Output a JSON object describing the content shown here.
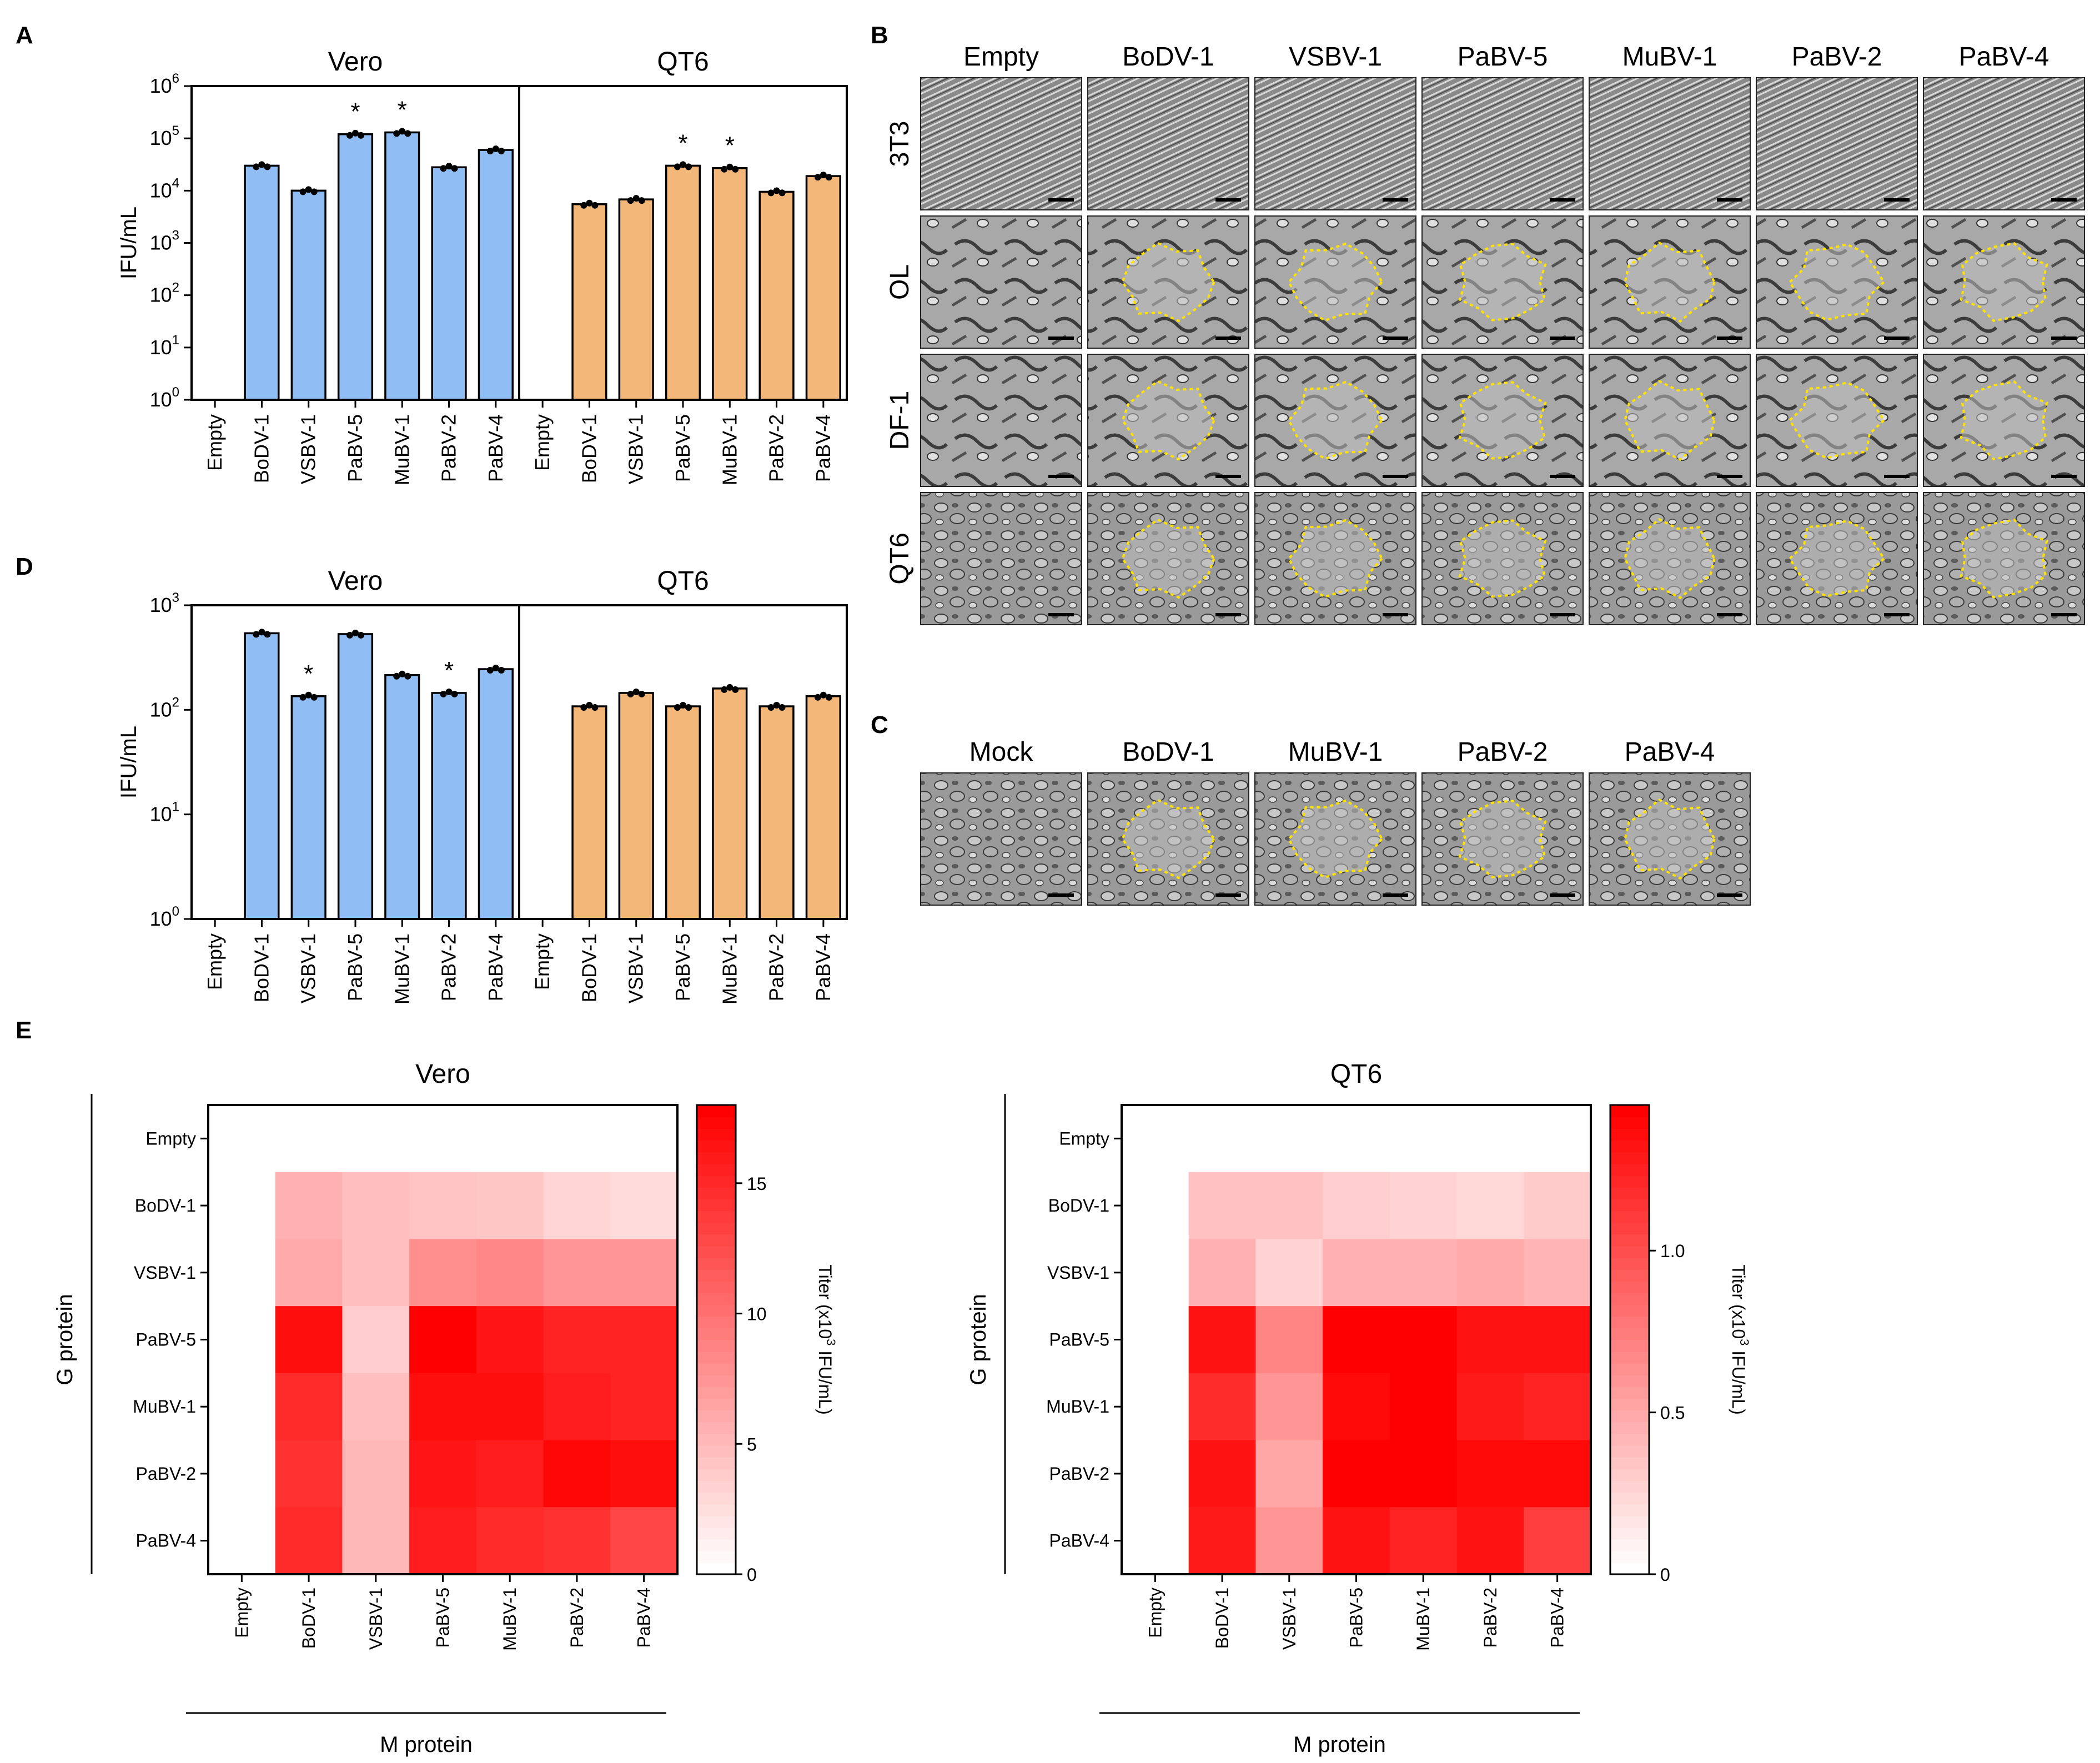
{
  "panels": {
    "a": "A",
    "b": "B",
    "c": "C",
    "d": "D",
    "e": "E"
  },
  "colors": {
    "vero": "#8fbdf4",
    "qt6": "#f4b77a",
    "heat_max": "#ff0000",
    "outline": "#ffe200"
  },
  "chart_data": [
    {
      "id": "A",
      "type": "bar",
      "ylabel": "IFU/mL",
      "yscale": "log",
      "ylim": [
        1,
        1000000
      ],
      "yticks": [
        "10",
        "10",
        "10",
        "10",
        "10",
        "10",
        "10"
      ],
      "ytick_exps": [
        "0",
        "1",
        "2",
        "3",
        "4",
        "5",
        "6"
      ],
      "groups": [
        {
          "title": "Vero",
          "color": "#8fbdf4",
          "categories": [
            "Empty",
            "BoDV-1",
            "VSBV-1",
            "PaBV-5",
            "MuBV-1",
            "PaBV-2",
            "PaBV-4"
          ],
          "values": [
            null,
            30000,
            10000,
            120000,
            130000,
            28000,
            60000
          ],
          "significant": [
            false,
            false,
            false,
            true,
            true,
            false,
            false
          ]
        },
        {
          "title": "QT6",
          "color": "#f4b77a",
          "categories": [
            "Empty",
            "BoDV-1",
            "VSBV-1",
            "PaBV-5",
            "MuBV-1",
            "PaBV-2",
            "PaBV-4"
          ],
          "values": [
            null,
            5500,
            6800,
            30000,
            27000,
            9500,
            19000
          ],
          "significant": [
            false,
            false,
            false,
            true,
            true,
            false,
            false
          ]
        }
      ],
      "sig_mark": "*"
    },
    {
      "id": "D",
      "type": "bar",
      "ylabel": "IFU/mL",
      "yscale": "log",
      "ylim": [
        1,
        1000
      ],
      "yticks": [
        "10",
        "10",
        "10",
        "10"
      ],
      "ytick_exps": [
        "0",
        "1",
        "2",
        "3"
      ],
      "groups": [
        {
          "title": "Vero",
          "color": "#8fbdf4",
          "categories": [
            "Empty",
            "BoDV-1",
            "VSBV-1",
            "PaBV-5",
            "MuBV-1",
            "PaBV-2",
            "PaBV-4"
          ],
          "values": [
            null,
            540,
            135,
            530,
            215,
            145,
            245
          ],
          "significant": [
            false,
            false,
            true,
            false,
            false,
            true,
            false
          ]
        },
        {
          "title": "QT6",
          "color": "#f4b77a",
          "categories": [
            "Empty",
            "BoDV-1",
            "VSBV-1",
            "PaBV-5",
            "MuBV-1",
            "PaBV-2",
            "PaBV-4"
          ],
          "values": [
            null,
            108,
            145,
            108,
            160,
            108,
            135
          ],
          "significant": [
            false,
            false,
            false,
            false,
            false,
            false,
            false
          ]
        }
      ],
      "sig_mark": "*"
    },
    {
      "id": "E-Vero",
      "type": "heatmap",
      "title": "Vero",
      "xlabel": "M protein",
      "ylabel": "G protein",
      "x": [
        "Empty",
        "BoDV-1",
        "VSBV-1",
        "PaBV-5",
        "MuBV-1",
        "PaBV-2",
        "PaBV-4"
      ],
      "y": [
        "Empty",
        "BoDV-1",
        "VSBV-1",
        "PaBV-5",
        "MuBV-1",
        "PaBV-2",
        "PaBV-4"
      ],
      "z": [
        [
          0,
          0,
          0,
          0,
          0,
          0,
          0
        ],
        [
          0,
          5.5,
          4.5,
          4.2,
          4.0,
          3.0,
          2.5
        ],
        [
          0,
          6.0,
          4.5,
          8.0,
          8.5,
          7.5,
          7.5
        ],
        [
          0,
          17.0,
          3.5,
          18.0,
          16.5,
          15.5,
          15.5
        ],
        [
          0,
          15.0,
          4.5,
          17.0,
          17.0,
          16.0,
          15.5
        ],
        [
          0,
          14.5,
          5.0,
          16.5,
          16.0,
          17.5,
          17.0
        ],
        [
          0,
          15.0,
          5.0,
          16.0,
          15.0,
          14.5,
          13.0
        ]
      ],
      "colorbar": {
        "label": "Titer (x10",
        "label_exp": "3",
        "label_end": " IFU/mL)",
        "ticks": [
          "0",
          "5",
          "10",
          "15"
        ],
        "range": [
          0,
          18
        ]
      }
    },
    {
      "id": "E-QT6",
      "type": "heatmap",
      "title": "QT6",
      "xlabel": "M protein",
      "ylabel": "G protein",
      "x": [
        "Empty",
        "BoDV-1",
        "VSBV-1",
        "PaBV-5",
        "MuBV-1",
        "PaBV-2",
        "PaBV-4"
      ],
      "y": [
        "Empty",
        "BoDV-1",
        "VSBV-1",
        "PaBV-5",
        "MuBV-1",
        "PaBV-2",
        "PaBV-4"
      ],
      "z": [
        [
          0,
          0,
          0,
          0,
          0,
          0,
          0
        ],
        [
          0,
          0.35,
          0.35,
          0.28,
          0.25,
          0.22,
          0.3
        ],
        [
          0,
          0.45,
          0.25,
          0.45,
          0.45,
          0.48,
          0.42
        ],
        [
          0,
          1.35,
          0.7,
          1.45,
          1.45,
          1.35,
          1.35
        ],
        [
          0,
          1.2,
          0.6,
          1.4,
          1.45,
          1.3,
          1.25
        ],
        [
          0,
          1.35,
          0.5,
          1.45,
          1.45,
          1.4,
          1.4
        ],
        [
          0,
          1.3,
          0.6,
          1.35,
          1.25,
          1.35,
          1.1
        ]
      ],
      "colorbar": {
        "label": "Titer (x10",
        "label_exp": "3",
        "label_end": " IFU/mL)",
        "ticks": [
          "0",
          "0.5",
          "1.0"
        ],
        "range": [
          0,
          1.45
        ]
      }
    }
  ],
  "micrographs_b": {
    "columns": [
      "Empty",
      "BoDV-1",
      "VSBV-1",
      "PaBV-5",
      "MuBV-1",
      "PaBV-2",
      "PaBV-4"
    ],
    "rows": [
      "3T3",
      "OL",
      "DF-1",
      "QT6"
    ]
  },
  "micrographs_c": {
    "columns": [
      "Mock",
      "BoDV-1",
      "MuBV-1",
      "PaBV-2",
      "PaBV-4"
    ]
  }
}
